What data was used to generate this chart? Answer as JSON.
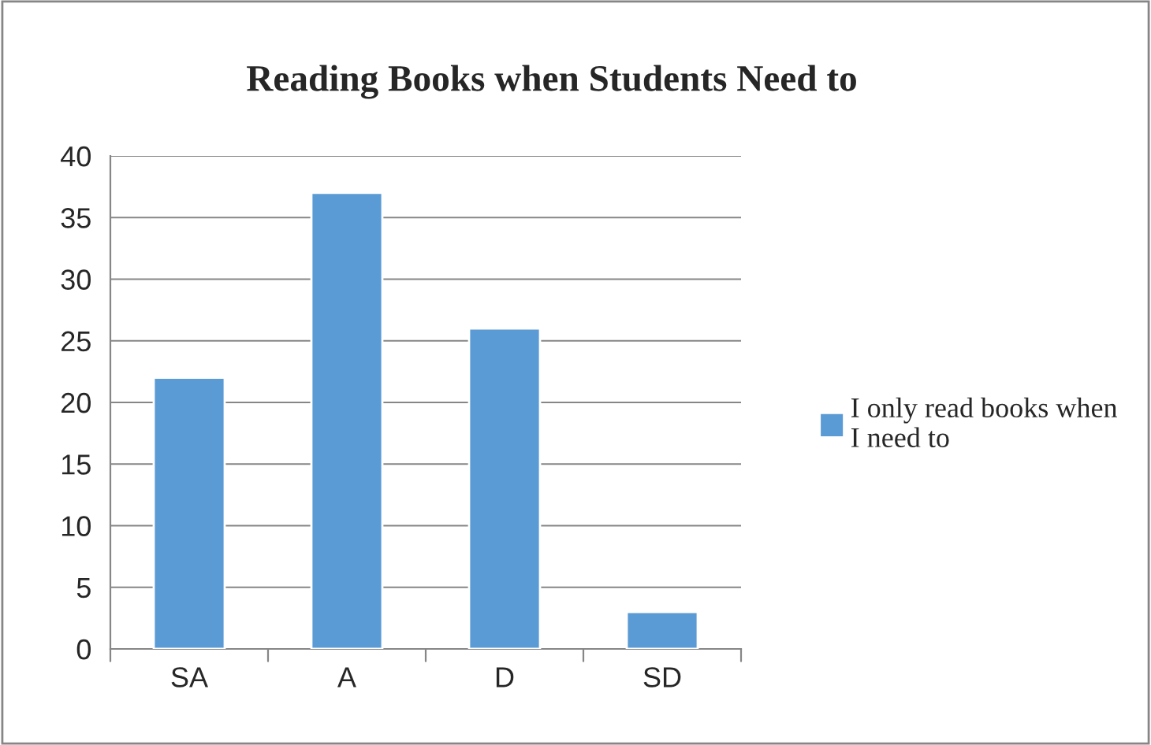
{
  "chart_data": {
    "type": "bar",
    "title": "Reading Books when Students Need to",
    "categories": [
      "SA",
      "A",
      "D",
      "SD"
    ],
    "series": [
      {
        "name": "I only read books when I need to",
        "color": "#5b9bd5",
        "values": [
          22,
          37,
          26,
          3
        ]
      }
    ],
    "ylim": [
      0,
      40
    ],
    "yticks": [
      0,
      5,
      10,
      15,
      20,
      25,
      30,
      35,
      40
    ],
    "grid": "y",
    "legend": "right"
  }
}
